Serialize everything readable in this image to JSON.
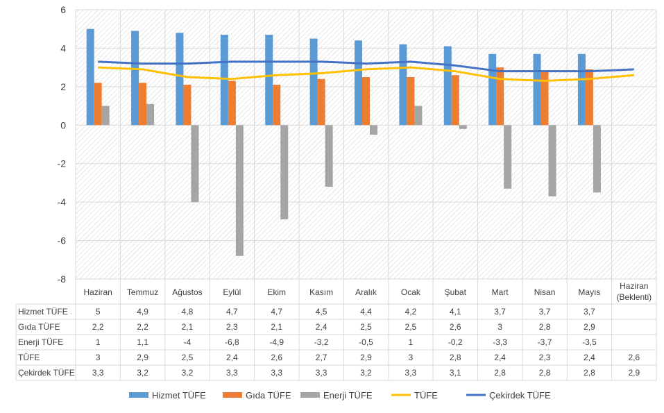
{
  "chart_data": {
    "type": "bar",
    "ylim": [
      -8,
      6
    ],
    "ytick_step": 2,
    "yticks": [
      "6",
      "4",
      "2",
      "0",
      "-2",
      "-4",
      "-6",
      "-8"
    ],
    "grid": true,
    "legend_position": "bottom",
    "categories": [
      "Haziran",
      "Temmuz",
      "Ağustos",
      "Eylül",
      "Ekim",
      "Kasım",
      "Aralık",
      "Ocak",
      "Şubat",
      "Mart",
      "Nisan",
      "Mayıs",
      "Haziran (Beklenti)"
    ],
    "category_lines": [
      [
        "Haziran"
      ],
      [
        "Temmuz"
      ],
      [
        "Ağustos"
      ],
      [
        "Eylül"
      ],
      [
        "Ekim"
      ],
      [
        "Kasım"
      ],
      [
        "Aralık"
      ],
      [
        "Ocak"
      ],
      [
        "Şubat"
      ],
      [
        "Mart"
      ],
      [
        "Nisan"
      ],
      [
        "Mayıs"
      ],
      [
        "Haziran",
        "(Beklenti)"
      ]
    ],
    "series": [
      {
        "name": "Hizmet TÜFE",
        "kind": "bar",
        "color": "#5B9BD5",
        "values": [
          5,
          4.9,
          4.8,
          4.7,
          4.7,
          4.5,
          4.4,
          4.2,
          4.1,
          3.7,
          3.7,
          3.7,
          null
        ],
        "labels": [
          "5",
          "4,9",
          "4,8",
          "4,7",
          "4,7",
          "4,5",
          "4,4",
          "4,2",
          "4,1",
          "3,7",
          "3,7",
          "3,7",
          ""
        ]
      },
      {
        "name": "Gıda TÜFE",
        "kind": "bar",
        "color": "#ED7D31",
        "values": [
          2.2,
          2.2,
          2.1,
          2.3,
          2.1,
          2.4,
          2.5,
          2.5,
          2.6,
          3,
          2.8,
          2.9,
          null
        ],
        "labels": [
          "2,2",
          "2,2",
          "2,1",
          "2,3",
          "2,1",
          "2,4",
          "2,5",
          "2,5",
          "2,6",
          "3",
          "2,8",
          "2,9",
          ""
        ]
      },
      {
        "name": "Enerji TÜFE",
        "kind": "bar",
        "color": "#A5A5A5",
        "values": [
          1,
          1.1,
          -4,
          -6.8,
          -4.9,
          -3.2,
          -0.5,
          1,
          -0.2,
          -3.3,
          -3.7,
          -3.5,
          null
        ],
        "labels": [
          "1",
          "1,1",
          "-4",
          "-6,8",
          "-4,9",
          "-3,2",
          "-0,5",
          "1",
          "-0,2",
          "-3,3",
          "-3,7",
          "-3,5",
          ""
        ]
      },
      {
        "name": "TÜFE",
        "kind": "line",
        "color": "#FFC000",
        "values": [
          3,
          2.9,
          2.5,
          2.4,
          2.6,
          2.7,
          2.9,
          3,
          2.8,
          2.4,
          2.3,
          2.4,
          2.6
        ],
        "labels": [
          "3",
          "2,9",
          "2,5",
          "2,4",
          "2,6",
          "2,7",
          "2,9",
          "3",
          "2,8",
          "2,4",
          "2,3",
          "2,4",
          "2,6"
        ]
      },
      {
        "name": "Çekirdek TÜFE",
        "kind": "line",
        "color": "#4472C4",
        "values": [
          3.3,
          3.2,
          3.2,
          3.3,
          3.3,
          3.3,
          3.2,
          3.3,
          3.1,
          2.8,
          2.8,
          2.8,
          2.9
        ],
        "labels": [
          "3,3",
          "3,2",
          "3,2",
          "3,3",
          "3,3",
          "3,3",
          "3,2",
          "3,3",
          "3,1",
          "2,8",
          "2,8",
          "2,8",
          "2,9"
        ]
      }
    ]
  }
}
